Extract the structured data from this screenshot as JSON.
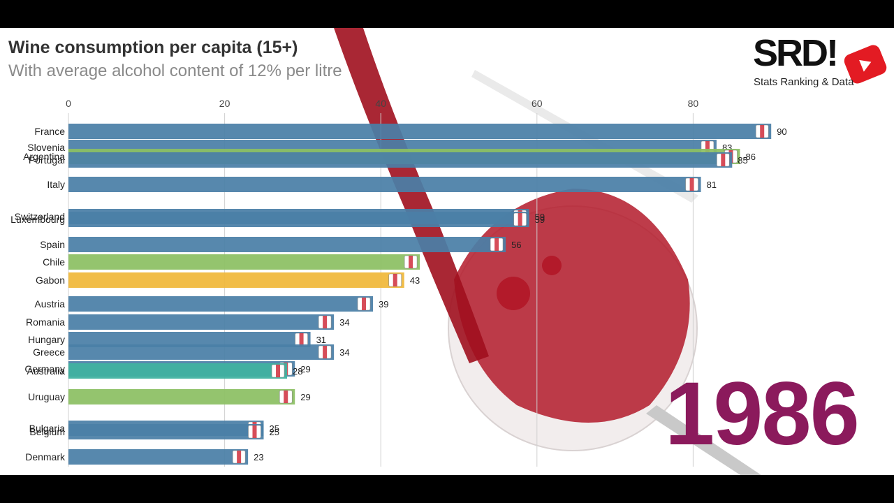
{
  "title": "Wine consumption per capita (15+)",
  "subtitle": "With average alcohol content of 12% per litre",
  "brand": {
    "name": "SRD!",
    "caption": "Stats Ranking & Data",
    "icon": "youtube-play-icon"
  },
  "year": "1986",
  "colors": {
    "europe": "#4a7fa7",
    "americas": "#8cc063",
    "africa": "#f0b83a",
    "oceania": "#3fb2a0",
    "year": "#8b1a5c"
  },
  "chart_data": {
    "type": "bar",
    "orientation": "horizontal",
    "xlim": [
      0,
      90
    ],
    "xticks": [
      0,
      20,
      40,
      60,
      80
    ],
    "grid": true,
    "categories": [
      "France",
      "Slovenia",
      "Argentina",
      "Portugal",
      "Italy",
      "Switzerland",
      "Luxembourg",
      "Spain",
      "Chile",
      "Gabon",
      "Austria",
      "Romania",
      "Hungary",
      "Greece",
      "Germany",
      "Australia",
      "Uruguay",
      "Bulgaria",
      "Belgium",
      "Denmark"
    ],
    "values": [
      90,
      83,
      86,
      85,
      81,
      59,
      59,
      56,
      45,
      43,
      39,
      34,
      31,
      34,
      29,
      28,
      29,
      25,
      25,
      23
    ],
    "value_labels": [
      "90",
      "83",
      "86",
      "85",
      "81",
      "59",
      "59",
      "56",
      "",
      "43",
      "39",
      "34",
      "31",
      "34",
      "29",
      "28",
      "29",
      "25",
      "25",
      "23"
    ],
    "region": [
      "europe",
      "europe",
      "americas",
      "europe",
      "europe",
      "europe",
      "europe",
      "europe",
      "americas",
      "africa",
      "europe",
      "europe",
      "europe",
      "europe",
      "europe",
      "oceania",
      "americas",
      "europe",
      "europe",
      "europe"
    ],
    "flags": [
      "france-flag-icon",
      "slovenia-flag-icon",
      "argentina-flag-icon",
      "portugal-flag-icon",
      "italy-flag-icon",
      "switzerland-flag-icon",
      "luxembourg-flag-icon",
      "spain-flag-icon",
      "chile-flag-icon",
      "gabon-flag-icon",
      "austria-flag-icon",
      "romania-flag-icon",
      "hungary-flag-icon",
      "greece-flag-icon",
      "germany-flag-icon",
      "australia-flag-icon",
      "uruguay-flag-icon",
      "bulgaria-flag-icon",
      "belgium-flag-icon",
      "denmark-flag-icon"
    ]
  }
}
